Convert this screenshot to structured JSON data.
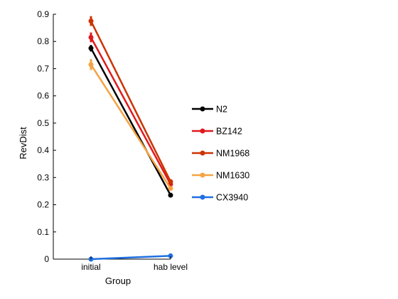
{
  "chart_data": {
    "type": "line",
    "xlabel": "Group",
    "ylabel": "RevDist",
    "categories": [
      "initial",
      "hab level"
    ],
    "ylim": [
      0,
      0.9
    ],
    "yticks": [
      "0",
      "0.1",
      "0.2",
      "0.3",
      "0.4",
      "0.5",
      "0.6",
      "0.7",
      "0.8",
      "0.9"
    ],
    "grid": false,
    "legend_position": "right",
    "series": [
      {
        "name": "N2",
        "color": "#000000",
        "values": [
          0.775,
          0.235
        ],
        "errors": [
          0.012,
          0.006
        ]
      },
      {
        "name": "BZ142",
        "color": "#e0191f",
        "values": [
          0.815,
          0.275
        ],
        "errors": [
          0.018,
          0.008
        ]
      },
      {
        "name": "NM1968",
        "color": "#cc3300",
        "values": [
          0.875,
          0.285
        ],
        "errors": [
          0.018,
          0.008
        ]
      },
      {
        "name": "NM1630",
        "color": "#f5a342",
        "values": [
          0.715,
          0.26
        ],
        "errors": [
          0.02,
          0.008
        ]
      },
      {
        "name": "CX3940",
        "color": "#1f6fe0",
        "values": [
          0.0,
          0.012
        ],
        "errors": [
          0.003,
          0.003
        ]
      }
    ]
  }
}
